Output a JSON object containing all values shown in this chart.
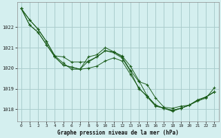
{
  "title": "Graphe pression niveau de la mer (hPa)",
  "bg_color": "#d4efef",
  "grid_color": "#aacccc",
  "line_color": "#1a5c1a",
  "marker_color": "#1a5c1a",
  "xlim": [
    -0.5,
    23.5
  ],
  "ylim": [
    1017.4,
    1023.2
  ],
  "yticks": [
    1018,
    1019,
    1020,
    1021,
    1022
  ],
  "xticks": [
    0,
    1,
    2,
    3,
    4,
    5,
    6,
    7,
    8,
    9,
    10,
    11,
    12,
    13,
    14,
    15,
    16,
    17,
    18,
    19,
    20,
    21,
    22,
    23
  ],
  "series": [
    [
      1022.9,
      1022.35,
      1021.9,
      1021.3,
      1020.6,
      1020.25,
      1019.95,
      1019.95,
      1020.35,
      1020.55,
      1020.85,
      1020.8,
      1020.55,
      1019.9,
      1019.35,
      1019.2,
      1018.55,
      1018.1,
      1018.05,
      1018.15,
      1018.2,
      1018.45,
      1018.6,
      1018.85
    ],
    [
      1022.9,
      1022.35,
      1021.9,
      1021.3,
      1020.6,
      1020.55,
      1020.3,
      1020.3,
      1020.3,
      1020.55,
      1020.85,
      1020.75,
      1020.5,
      1019.85,
      1019.0,
      1018.65,
      1018.2,
      1018.05,
      1017.95,
      1018.05,
      1018.2,
      1018.45,
      1018.6,
      1018.85
    ],
    [
      1022.9,
      1022.1,
      1021.75,
      1021.15,
      1020.55,
      1020.15,
      1020.05,
      1019.95,
      1020.55,
      1020.65,
      1021.0,
      1020.8,
      1020.6,
      1020.1,
      1019.4,
      1018.65,
      1018.2,
      1018.05,
      1017.95,
      1018.05,
      1018.2,
      1018.45,
      1018.6,
      1018.85
    ],
    [
      1022.9,
      1022.1,
      1021.75,
      1021.15,
      1020.55,
      1020.15,
      1020.05,
      1019.95,
      1020.0,
      1020.1,
      1020.35,
      1020.5,
      1020.35,
      1019.7,
      1019.05,
      1018.6,
      1018.15,
      1018.05,
      1017.9,
      1018.05,
      1018.2,
      1018.4,
      1018.55,
      1019.05
    ]
  ]
}
